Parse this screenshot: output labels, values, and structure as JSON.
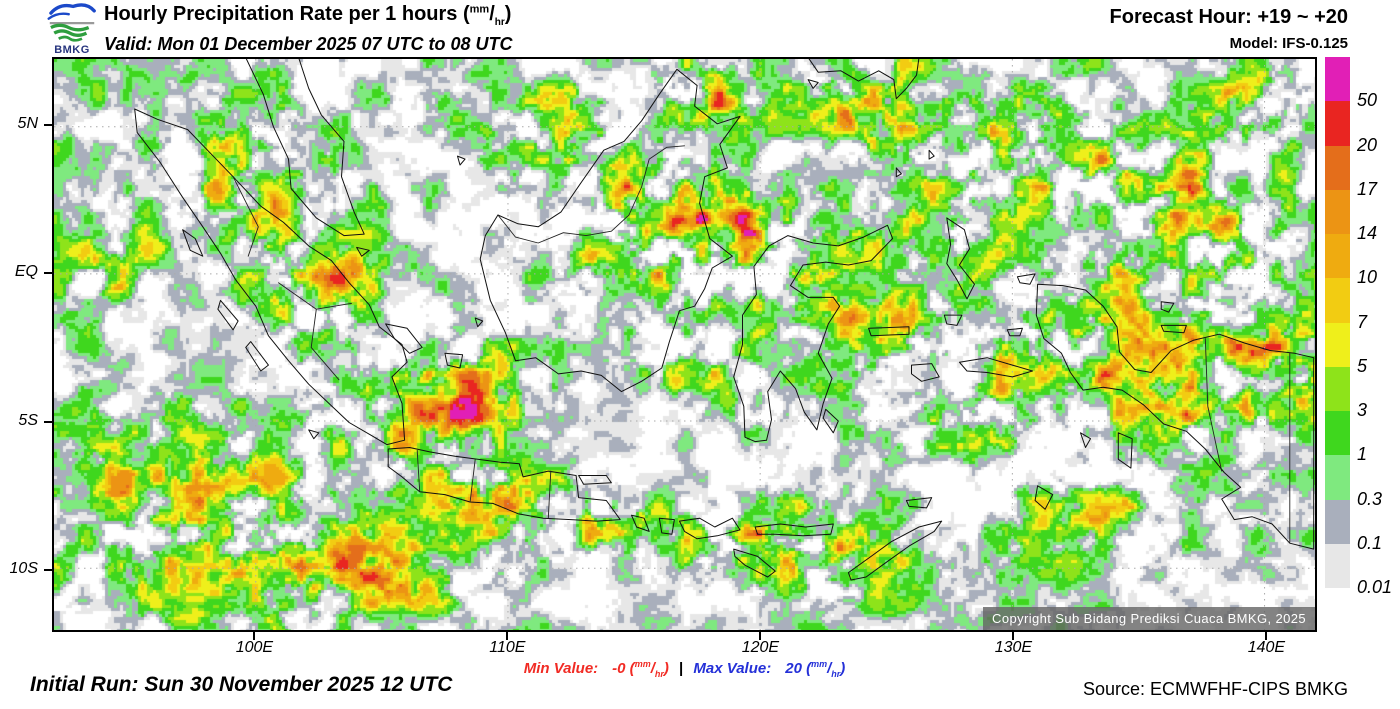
{
  "header": {
    "logo_text": "BMKG",
    "title_prefix": "Hourly Precipitation Rate per 1 hours (",
    "unit_num": "mm",
    "unit_den": "hr",
    "title_suffix": ")",
    "valid": "Valid: Mon 01 December 2025 07 UTC to 08 UTC",
    "forecast_hour": "Forecast Hour: +19 ~ +20",
    "model": "Model: IFS-0.125"
  },
  "axes": {
    "lon_range": [
      92,
      142
    ],
    "lat_range": [
      7.3,
      -12.1
    ],
    "x_ticks": [
      {
        "label": "100E",
        "lon": 100
      },
      {
        "label": "110E",
        "lon": 110
      },
      {
        "label": "120E",
        "lon": 120
      },
      {
        "label": "130E",
        "lon": 130
      },
      {
        "label": "140E",
        "lon": 140
      }
    ],
    "y_ticks": [
      {
        "label": "5N",
        "lat": 5
      },
      {
        "label": "EQ",
        "lat": 0
      },
      {
        "label": "5S",
        "lat": -5
      },
      {
        "label": "10S",
        "lat": -10
      }
    ]
  },
  "legend": {
    "entries": [
      {
        "label": "50",
        "color": "#E11FB6"
      },
      {
        "label": "20",
        "color": "#E92521"
      },
      {
        "label": "17",
        "color": "#E46E1B"
      },
      {
        "label": "14",
        "color": "#EC9414"
      },
      {
        "label": "10",
        "color": "#EFAB10"
      },
      {
        "label": "7",
        "color": "#F2CC12"
      },
      {
        "label": "5",
        "color": "#EFEF1B"
      },
      {
        "label": "3",
        "color": "#8EE31A"
      },
      {
        "label": "1",
        "color": "#3FD71E"
      },
      {
        "label": "0.3",
        "color": "#7FE97F"
      },
      {
        "label": "0.1",
        "color": "#A9AFBC"
      },
      {
        "label": "0.01",
        "color": "#E7E7E7"
      }
    ]
  },
  "map": {
    "copyright": "Copyright Sub Bidang Prediksi Cuaca BMKG, 2025",
    "render": {
      "seed": 20251201,
      "base": 0.45,
      "cap": 0.92,
      "cell": 3,
      "contrast": 1.7,
      "thresholds": [
        0.165,
        0.235,
        0.3,
        0.365,
        0.44,
        0.51,
        0.575,
        0.635,
        0.695,
        0.75,
        0.82,
        0.9
      ],
      "bumps": [
        [
          0.16,
          0.2,
          0.05,
          0.1,
          0.42
        ],
        [
          0.205,
          0.4,
          0.05,
          0.09,
          0.5
        ],
        [
          0.315,
          0.61,
          0.07,
          0.1,
          0.52
        ],
        [
          0.4,
          0.13,
          0.05,
          0.08,
          0.3
        ],
        [
          0.475,
          0.28,
          0.08,
          0.12,
          0.55
        ],
        [
          0.565,
          0.34,
          0.05,
          0.1,
          0.4
        ],
        [
          0.52,
          0.06,
          0.04,
          0.06,
          0.4
        ],
        [
          0.645,
          0.08,
          0.05,
          0.08,
          0.45
        ],
        [
          0.76,
          0.15,
          0.07,
          0.1,
          0.42
        ],
        [
          0.88,
          0.22,
          0.07,
          0.09,
          0.38
        ],
        [
          0.955,
          0.07,
          0.045,
          0.06,
          0.45
        ],
        [
          0.7,
          0.3,
          0.045,
          0.06,
          0.36
        ],
        [
          0.8,
          0.4,
          0.05,
          0.08,
          0.4
        ],
        [
          0.655,
          0.47,
          0.05,
          0.08,
          0.38
        ],
        [
          0.73,
          0.62,
          0.06,
          0.08,
          0.38
        ],
        [
          0.77,
          0.5,
          0.045,
          0.05,
          0.38
        ],
        [
          0.93,
          0.53,
          0.085,
          0.13,
          0.55
        ],
        [
          0.865,
          0.57,
          0.04,
          0.07,
          0.48
        ],
        [
          0.345,
          0.77,
          0.04,
          0.05,
          0.46
        ],
        [
          0.43,
          0.8,
          0.06,
          0.05,
          0.4
        ],
        [
          0.55,
          0.83,
          0.05,
          0.06,
          0.46
        ],
        [
          0.62,
          0.87,
          0.05,
          0.06,
          0.4
        ],
        [
          0.1,
          0.78,
          0.11,
          0.14,
          0.38
        ],
        [
          0.235,
          0.9,
          0.08,
          0.08,
          0.38
        ],
        [
          0.05,
          0.36,
          0.035,
          0.07,
          0.3
        ],
        [
          0.5,
          0.54,
          0.05,
          0.06,
          0.3
        ],
        [
          0.82,
          0.8,
          0.06,
          0.07,
          0.28
        ],
        [
          0.915,
          0.33,
          0.05,
          0.06,
          0.33
        ],
        [
          0.44,
          0.63,
          0.08,
          0.08,
          -0.22
        ],
        [
          0.13,
          0.5,
          0.07,
          0.1,
          -0.15
        ],
        [
          0.33,
          0.36,
          0.05,
          0.06,
          -0.14
        ],
        [
          0.6,
          0.15,
          0.05,
          0.07,
          -0.12
        ],
        [
          0.9,
          0.93,
          0.08,
          0.06,
          -0.15
        ],
        [
          0.48,
          0.96,
          0.12,
          0.05,
          -0.1
        ]
      ]
    }
  },
  "footer": {
    "initial_run": "Initial Run: Sun 30 November 2025 12 UTC",
    "min_label": "Min Value:",
    "min_value": "-0",
    "max_label": "Max Value:",
    "max_value": "20",
    "unit_num": "mm",
    "unit_den": "hr",
    "separator": "|",
    "min_color": "#F12B24",
    "max_color": "#2430D8",
    "source": "Source: ECMWFHF-CIPS BMKG"
  }
}
